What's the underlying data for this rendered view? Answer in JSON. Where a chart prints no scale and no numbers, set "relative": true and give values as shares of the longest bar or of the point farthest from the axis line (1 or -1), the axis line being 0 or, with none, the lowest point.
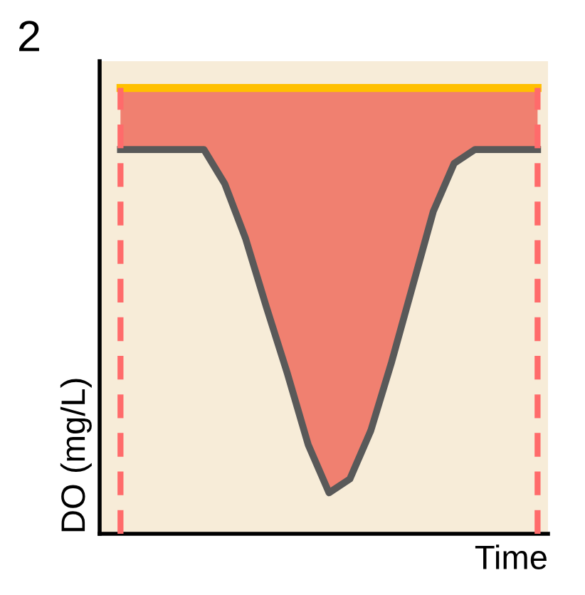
{
  "chart_data": {
    "type": "line",
    "relative": true,
    "xlabel": "Time",
    "ylabel": "DO (mg/L)",
    "annotations": [
      "2"
    ],
    "categories": [
      null,
      null,
      null,
      null,
      null,
      null,
      null,
      null,
      null,
      null,
      null,
      null,
      null,
      null,
      null,
      null,
      null,
      null,
      null,
      null,
      null
    ],
    "series": [
      {
        "color": "#ffc000",
        "values": [
          1,
          1,
          1,
          1,
          1,
          1,
          1,
          1,
          1,
          1,
          1,
          1,
          1,
          1,
          1,
          1,
          1,
          1,
          1,
          1,
          1
        ]
      },
      {
        "color": "#595959",
        "values": [
          0.862,
          0.862,
          0.862,
          0.862,
          0.862,
          0.785,
          0.662,
          0.508,
          0.36,
          0.2,
          0.092,
          0.123,
          0.231,
          0.385,
          0.554,
          0.723,
          0.831,
          0.862,
          0.862,
          0.862,
          0.862
        ],
        "lower": [
          0.862,
          0.862,
          0.862,
          0.862,
          0.862,
          0.785,
          0.662,
          0.508,
          0.36,
          0.2,
          0.092,
          0.123,
          0.231,
          0.385,
          0.554,
          0.723,
          0.831,
          0.862,
          0.862,
          0.862,
          0.862
        ],
        "upper": [
          1,
          1,
          1,
          1,
          1,
          1,
          1,
          1,
          1,
          1,
          1,
          1,
          1,
          1,
          1,
          1,
          1,
          1,
          1,
          1,
          1
        ]
      }
    ],
    "legend": false,
    "grid": false
  }
}
